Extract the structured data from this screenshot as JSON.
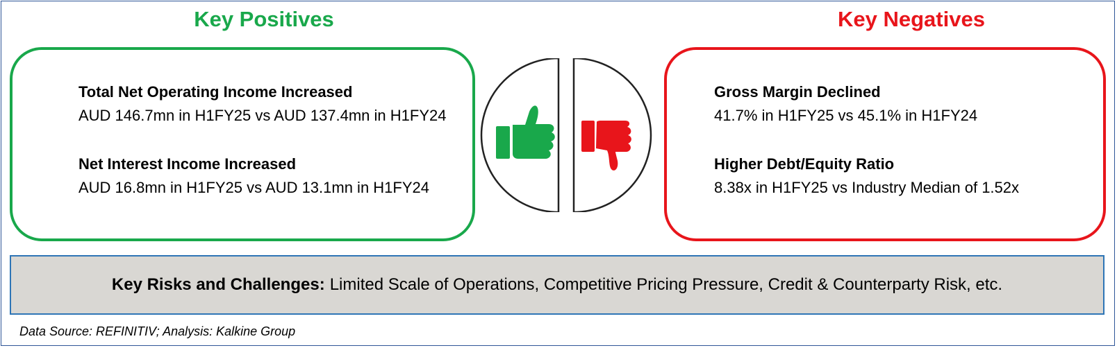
{
  "positives": {
    "heading": "Key Positives",
    "color": "#19a84b",
    "items": [
      {
        "title": "Total Net Operating Income Increased",
        "detail": "AUD 146.7mn in H1FY25 vs AUD 137.4mn in H1FY24"
      },
      {
        "title": "Net Interest Income Increased",
        "detail": "AUD 16.8mn in H1FY25 vs AUD 13.1mn in H1FY24"
      }
    ]
  },
  "negatives": {
    "heading": "Key Negatives",
    "color": "#e8151b",
    "items": [
      {
        "title": "Gross Margin Declined",
        "detail": "41.7% in H1FY25 vs 45.1% in H1FY24"
      },
      {
        "title": "Higher Debt/Equity Ratio",
        "detail": "8.38x in H1FY25 vs Industry Median of 1.52x"
      }
    ]
  },
  "icons": {
    "thumbs_up": "thumbs-up-icon",
    "thumbs_down": "thumbs-down-icon"
  },
  "risks": {
    "label": "Key Risks and Challenges:",
    "text": "Limited Scale of Operations, Competitive Pricing Pressure, Credit & Counterparty Risk, etc."
  },
  "source": "Data Source: REFINITIV; Analysis: Kalkine Group"
}
